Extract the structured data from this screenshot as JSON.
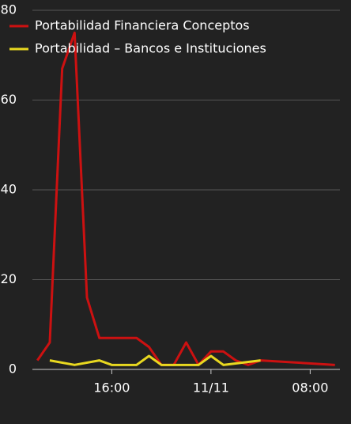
{
  "chart_data": {
    "type": "line",
    "xlim": [
      9.6,
      34.4
    ],
    "xticks": [
      {
        "value": 16,
        "label": "16:00"
      },
      {
        "value": 24,
        "label": "11/11"
      },
      {
        "value": 32,
        "label": "08:00"
      }
    ],
    "ylim": [
      0,
      80
    ],
    "yticks": [
      0,
      20,
      40,
      60,
      80
    ],
    "grid": true,
    "legend": "top-left",
    "series": [
      {
        "name": "Portabilidad Financiera Conceptos",
        "color": "#cc1111",
        "x": [
          10,
          11,
          12,
          13,
          14,
          15,
          16,
          17,
          18,
          19,
          20,
          21,
          22,
          23,
          24,
          25,
          26,
          27,
          28,
          34
        ],
        "values": [
          2,
          6,
          67,
          75,
          16,
          7,
          7,
          7,
          7,
          5,
          1,
          1,
          6,
          1,
          4,
          4,
          2,
          1,
          2,
          1
        ]
      },
      {
        "name": "Portabilidad – Bancos e Instituciones",
        "color": "#e8d820",
        "x": [
          11,
          13,
          15,
          16,
          18,
          19,
          20,
          23,
          24,
          25,
          28
        ],
        "values": [
          2,
          1,
          2,
          1,
          1,
          3,
          1,
          1,
          3,
          1,
          2
        ]
      }
    ]
  }
}
